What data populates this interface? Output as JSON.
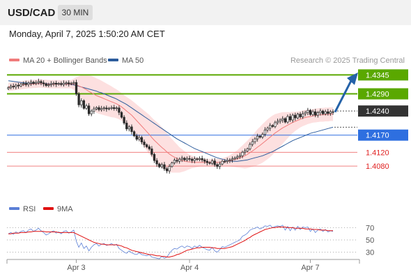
{
  "header": {
    "symbol": "USD/CAD",
    "timeframe": "30 MIN",
    "datetime": "Monday, April 7, 2025 1:50:20 AM CET"
  },
  "legend": {
    "ma20_label": "MA 20 + Bollinger Bands",
    "ma50_label": "MA 50",
    "credit": "Research © 2025 Trading Central",
    "ma20_color": "#f07b7b",
    "ma50_color": "#2c5c9c"
  },
  "rsi_legend": {
    "rsi_label": "RSI",
    "ma_label": "9MA",
    "rsi_color": "#5b7fd6",
    "ma_color": "#e01010"
  },
  "colors": {
    "resistance": "#5aa800",
    "current": "#333333",
    "pivot": "#2e6fe0",
    "support": "#f08080",
    "support_text": "#e02020",
    "arrow": "#2462a8",
    "band_fill": "#fde0e0"
  },
  "chart_data": [
    {
      "type": "candlestick",
      "title": "",
      "xlabel": "",
      "ylabel": "",
      "x_ticks": [
        "Apr 3",
        "Apr 4",
        "Apr 7"
      ],
      "price_ylim": [
        1.3995,
        1.436
      ],
      "levels": [
        {
          "label": "1.4345",
          "value": 1.4345,
          "kind": "resistance"
        },
        {
          "label": "1.4290",
          "value": 1.429,
          "kind": "resistance"
        },
        {
          "label": "1.4240",
          "value": 1.424,
          "kind": "current"
        },
        {
          "label": "1.4170",
          "value": 1.417,
          "kind": "pivot"
        },
        {
          "label": "1.4120",
          "value": 1.412,
          "kind": "support"
        },
        {
          "label": "1.4080",
          "value": 1.408,
          "kind": "support"
        }
      ],
      "projection": {
        "from": 1.4237,
        "to": 1.434
      },
      "close_series": [
        1.4308,
        1.4312,
        1.431,
        1.4315,
        1.4313,
        1.4318,
        1.432,
        1.4317,
        1.4321,
        1.4324,
        1.432,
        1.4323,
        1.4326,
        1.4322,
        1.4319,
        1.4314,
        1.4316,
        1.4319,
        1.4321,
        1.4318,
        1.432,
        1.4317,
        1.4321,
        1.4322,
        1.4319,
        1.4321,
        1.4323,
        1.429,
        1.4258,
        1.427,
        1.4248,
        1.4255,
        1.4232,
        1.424,
        1.4246,
        1.425,
        1.4244,
        1.4247,
        1.4249,
        1.4246,
        1.4248,
        1.425,
        1.4247,
        1.4249,
        1.4236,
        1.4222,
        1.4205,
        1.4188,
        1.4194,
        1.418,
        1.4168,
        1.4158,
        1.4163,
        1.415,
        1.4142,
        1.4136,
        1.413,
        1.4114,
        1.4096,
        1.4086,
        1.4078,
        1.4084,
        1.4072,
        1.4066,
        1.4079,
        1.4089,
        1.4097,
        1.4094,
        1.41,
        1.4103,
        1.4098,
        1.4102,
        1.41,
        1.4096,
        1.4101,
        1.4099,
        1.4102,
        1.4098,
        1.4094,
        1.409,
        1.4088,
        1.4095,
        1.4084,
        1.4079,
        1.4086,
        1.4094,
        1.4093,
        1.4096,
        1.4098,
        1.4101,
        1.4104,
        1.4107,
        1.411,
        1.412,
        1.4124,
        1.413,
        1.4143,
        1.4151,
        1.4159,
        1.4167,
        1.4164,
        1.4172,
        1.4185,
        1.419,
        1.4198,
        1.4195,
        1.4206,
        1.421,
        1.4214,
        1.4218,
        1.4208,
        1.4224,
        1.4214,
        1.4228,
        1.422,
        1.4231,
        1.4223,
        1.4232,
        1.4236,
        1.4242,
        1.423,
        1.4238,
        1.4228,
        1.4235,
        1.424,
        1.4232,
        1.4238,
        1.4233,
        1.4238,
        1.4237
      ],
      "ma20_series": [
        1.431,
        1.4311,
        1.4312,
        1.4313,
        1.4314,
        1.4315,
        1.4316,
        1.4317,
        1.4318,
        1.4318,
        1.4319,
        1.4319,
        1.432,
        1.432,
        1.4319,
        1.4319,
        1.4318,
        1.4318,
        1.4318,
        1.4318,
        1.4318,
        1.4318,
        1.4318,
        1.4318,
        1.4318,
        1.4318,
        1.4318,
        1.4316,
        1.4313,
        1.431,
        1.4306,
        1.4302,
        1.4297,
        1.4293,
        1.4289,
        1.4285,
        1.4282,
        1.4279,
        1.4276,
        1.4273,
        1.427,
        1.4267,
        1.4264,
        1.4261,
        1.4257,
        1.4252,
        1.4246,
        1.424,
        1.4234,
        1.4228,
        1.422,
        1.4212,
        1.4204,
        1.4196,
        1.4188,
        1.418,
        1.4172,
        1.4163,
        1.4155,
        1.4148,
        1.4141,
        1.4134,
        1.4128,
        1.4121,
        1.4115,
        1.411,
        1.4106,
        1.4102,
        1.4098,
        1.4096,
        1.4094,
        1.4093,
        1.4092,
        1.4092,
        1.4091,
        1.4091,
        1.4091,
        1.4091,
        1.4091,
        1.4091,
        1.4091,
        1.4091,
        1.4091,
        1.4091,
        1.4091,
        1.4092,
        1.4093,
        1.4094,
        1.4095,
        1.4097,
        1.4099,
        1.4101,
        1.4104,
        1.4107,
        1.411,
        1.4114,
        1.4119,
        1.4124,
        1.4129,
        1.4135,
        1.414,
        1.4146,
        1.4152,
        1.4158,
        1.4164,
        1.417,
        1.4176,
        1.4181,
        1.4186,
        1.4191,
        1.4195,
        1.4199,
        1.4203,
        1.4207,
        1.421,
        1.4213,
        1.4216,
        1.4219,
        1.4221,
        1.4223,
        1.4224,
        1.4226,
        1.4227,
        1.4228,
        1.4229,
        1.4229,
        1.423,
        1.423,
        1.4231,
        1.4231
      ],
      "ma50_series": [
        1.4328,
        1.4327,
        1.4326,
        1.4325,
        1.4324,
        1.4323,
        1.4322,
        1.4322,
        1.4321,
        1.4321,
        1.432,
        1.432,
        1.432,
        1.432,
        1.432,
        1.432,
        1.4319,
        1.4319,
        1.4319,
        1.4319,
        1.4319,
        1.4319,
        1.4319,
        1.4319,
        1.4318,
        1.4317,
        1.4316,
        1.4314,
        1.4312,
        1.431,
        1.4308,
        1.4306,
        1.4304,
        1.4302,
        1.43,
        1.4298,
        1.4295,
        1.4293,
        1.429,
        1.4287,
        1.4284,
        1.4281,
        1.4278,
        1.4275,
        1.4271,
        1.4267,
        1.4263,
        1.4259,
        1.4254,
        1.4249,
        1.4244,
        1.4239,
        1.4234,
        1.4229,
        1.4224,
        1.4219,
        1.4214,
        1.4209,
        1.4204,
        1.4199,
        1.4194,
        1.4189,
        1.4184,
        1.4179,
        1.4174,
        1.4169,
        1.4164,
        1.4159,
        1.4155,
        1.4151,
        1.4147,
        1.4143,
        1.4139,
        1.4135,
        1.4131,
        1.4128,
        1.4125,
        1.4122,
        1.4119,
        1.4116,
        1.4113,
        1.411,
        1.4107,
        1.4104,
        1.4102,
        1.41,
        1.4098,
        1.4096,
        1.4095,
        1.4094,
        1.4094,
        1.4094,
        1.4095,
        1.4096,
        1.4097,
        1.4098,
        1.41,
        1.4102,
        1.4104,
        1.4106,
        1.4108,
        1.411,
        1.4113,
        1.4116,
        1.4119,
        1.4122,
        1.4126,
        1.413,
        1.4134,
        1.4138,
        1.4142,
        1.4146,
        1.415,
        1.4154,
        1.4157,
        1.416,
        1.4163,
        1.4166,
        1.4169,
        1.4172,
        1.4175,
        1.4177,
        1.4179,
        1.4181,
        1.4183,
        1.4185,
        1.4187,
        1.4189,
        1.4191,
        1.4193
      ],
      "band_halfwidth": [
        0.0012,
        0.0012,
        0.0012,
        0.0012,
        0.0012,
        0.0012,
        0.0012,
        0.0012,
        0.0012,
        0.0012,
        0.0012,
        0.0012,
        0.0012,
        0.0012,
        0.0012,
        0.0012,
        0.0012,
        0.0012,
        0.0012,
        0.0012,
        0.0012,
        0.0012,
        0.0012,
        0.0012,
        0.0012,
        0.0012,
        0.0016,
        0.0022,
        0.0028,
        0.0034,
        0.0038,
        0.0042,
        0.0046,
        0.0049,
        0.005,
        0.005,
        0.005,
        0.0049,
        0.0048,
        0.0047,
        0.0046,
        0.0045,
        0.0043,
        0.0042,
        0.0041,
        0.004,
        0.004,
        0.0041,
        0.0042,
        0.0043,
        0.0045,
        0.0047,
        0.0049,
        0.0051,
        0.0053,
        0.0055,
        0.0057,
        0.0058,
        0.0059,
        0.006,
        0.006,
        0.0059,
        0.0057,
        0.0055,
        0.0052,
        0.0049,
        0.0045,
        0.0041,
        0.0037,
        0.0033,
        0.0029,
        0.0025,
        0.0021,
        0.0018,
        0.0016,
        0.0014,
        0.0012,
        0.0011,
        0.001,
        0.001,
        0.001,
        0.001,
        0.001,
        0.001,
        0.001,
        0.0011,
        0.0012,
        0.0014,
        0.0016,
        0.0019,
        0.0022,
        0.0025,
        0.0029,
        0.0033,
        0.0037,
        0.004,
        0.0043,
        0.0046,
        0.0049,
        0.0052,
        0.0054,
        0.0056,
        0.0057,
        0.0058,
        0.0058,
        0.0057,
        0.0055,
        0.0052,
        0.0049,
        0.0046,
        0.0042,
        0.0038,
        0.0034,
        0.0031,
        0.0028,
        0.0026,
        0.0024,
        0.0023,
        0.0022,
        0.0021,
        0.002,
        0.002,
        0.002,
        0.002,
        0.002,
        0.002,
        0.002,
        0.002,
        0.002,
        0.002
      ]
    },
    {
      "type": "line",
      "title": "",
      "xlabel": "",
      "ylabel": "",
      "yticks": [
        70,
        50,
        30
      ],
      "ylim": [
        18,
        83
      ],
      "series": [
        {
          "name": "RSI",
          "values": [
            60,
            62,
            59,
            63,
            61,
            64,
            65,
            62,
            66,
            68,
            64,
            66,
            69,
            65,
            62,
            58,
            60,
            63,
            65,
            61,
            63,
            60,
            64,
            65,
            61,
            63,
            66,
            48,
            38,
            45,
            36,
            40,
            32,
            38,
            42,
            44,
            40,
            43,
            44,
            41,
            42,
            44,
            41,
            43,
            36,
            33,
            30,
            28,
            32,
            29,
            27,
            26,
            29,
            26,
            25,
            24,
            26,
            22,
            21,
            20,
            19,
            23,
            20,
            22,
            28,
            33,
            36,
            35,
            38,
            40,
            37,
            40,
            39,
            36,
            40,
            38,
            41,
            38,
            36,
            34,
            33,
            38,
            32,
            30,
            34,
            39,
            38,
            40,
            42,
            44,
            46,
            48,
            50,
            56,
            58,
            61,
            66,
            68,
            69,
            71,
            68,
            70,
            73,
            72,
            74,
            70,
            72,
            73,
            72,
            74,
            66,
            72,
            65,
            71,
            66,
            72,
            67,
            71,
            70,
            71,
            64,
            68,
            62,
            66,
            68,
            64,
            67,
            63,
            65,
            64
          ]
        },
        {
          "name": "9MA",
          "values": [
            60,
            60,
            61,
            61,
            61,
            62,
            62,
            62,
            63,
            63,
            64,
            64,
            64,
            64,
            64,
            63,
            63,
            63,
            63,
            63,
            62,
            62,
            62,
            62,
            62,
            62,
            62,
            60,
            58,
            56,
            54,
            52,
            50,
            48,
            46,
            45,
            44,
            43,
            43,
            42,
            42,
            42,
            42,
            42,
            41,
            40,
            38,
            37,
            35,
            33,
            32,
            31,
            30,
            29,
            28,
            27,
            26,
            26,
            25,
            24,
            24,
            23,
            23,
            22,
            22,
            23,
            24,
            26,
            27,
            29,
            31,
            33,
            34,
            35,
            36,
            37,
            37,
            38,
            38,
            38,
            38,
            37,
            37,
            36,
            36,
            36,
            36,
            37,
            38,
            39,
            41,
            43,
            45,
            47,
            49,
            52,
            54,
            57,
            59,
            61,
            63,
            65,
            67,
            68,
            69,
            70,
            70,
            71,
            71,
            71,
            71,
            70,
            70,
            70,
            69,
            69,
            69,
            69,
            68,
            68,
            68,
            67,
            67,
            67,
            66,
            66,
            66,
            65,
            65,
            65
          ]
        }
      ]
    }
  ]
}
